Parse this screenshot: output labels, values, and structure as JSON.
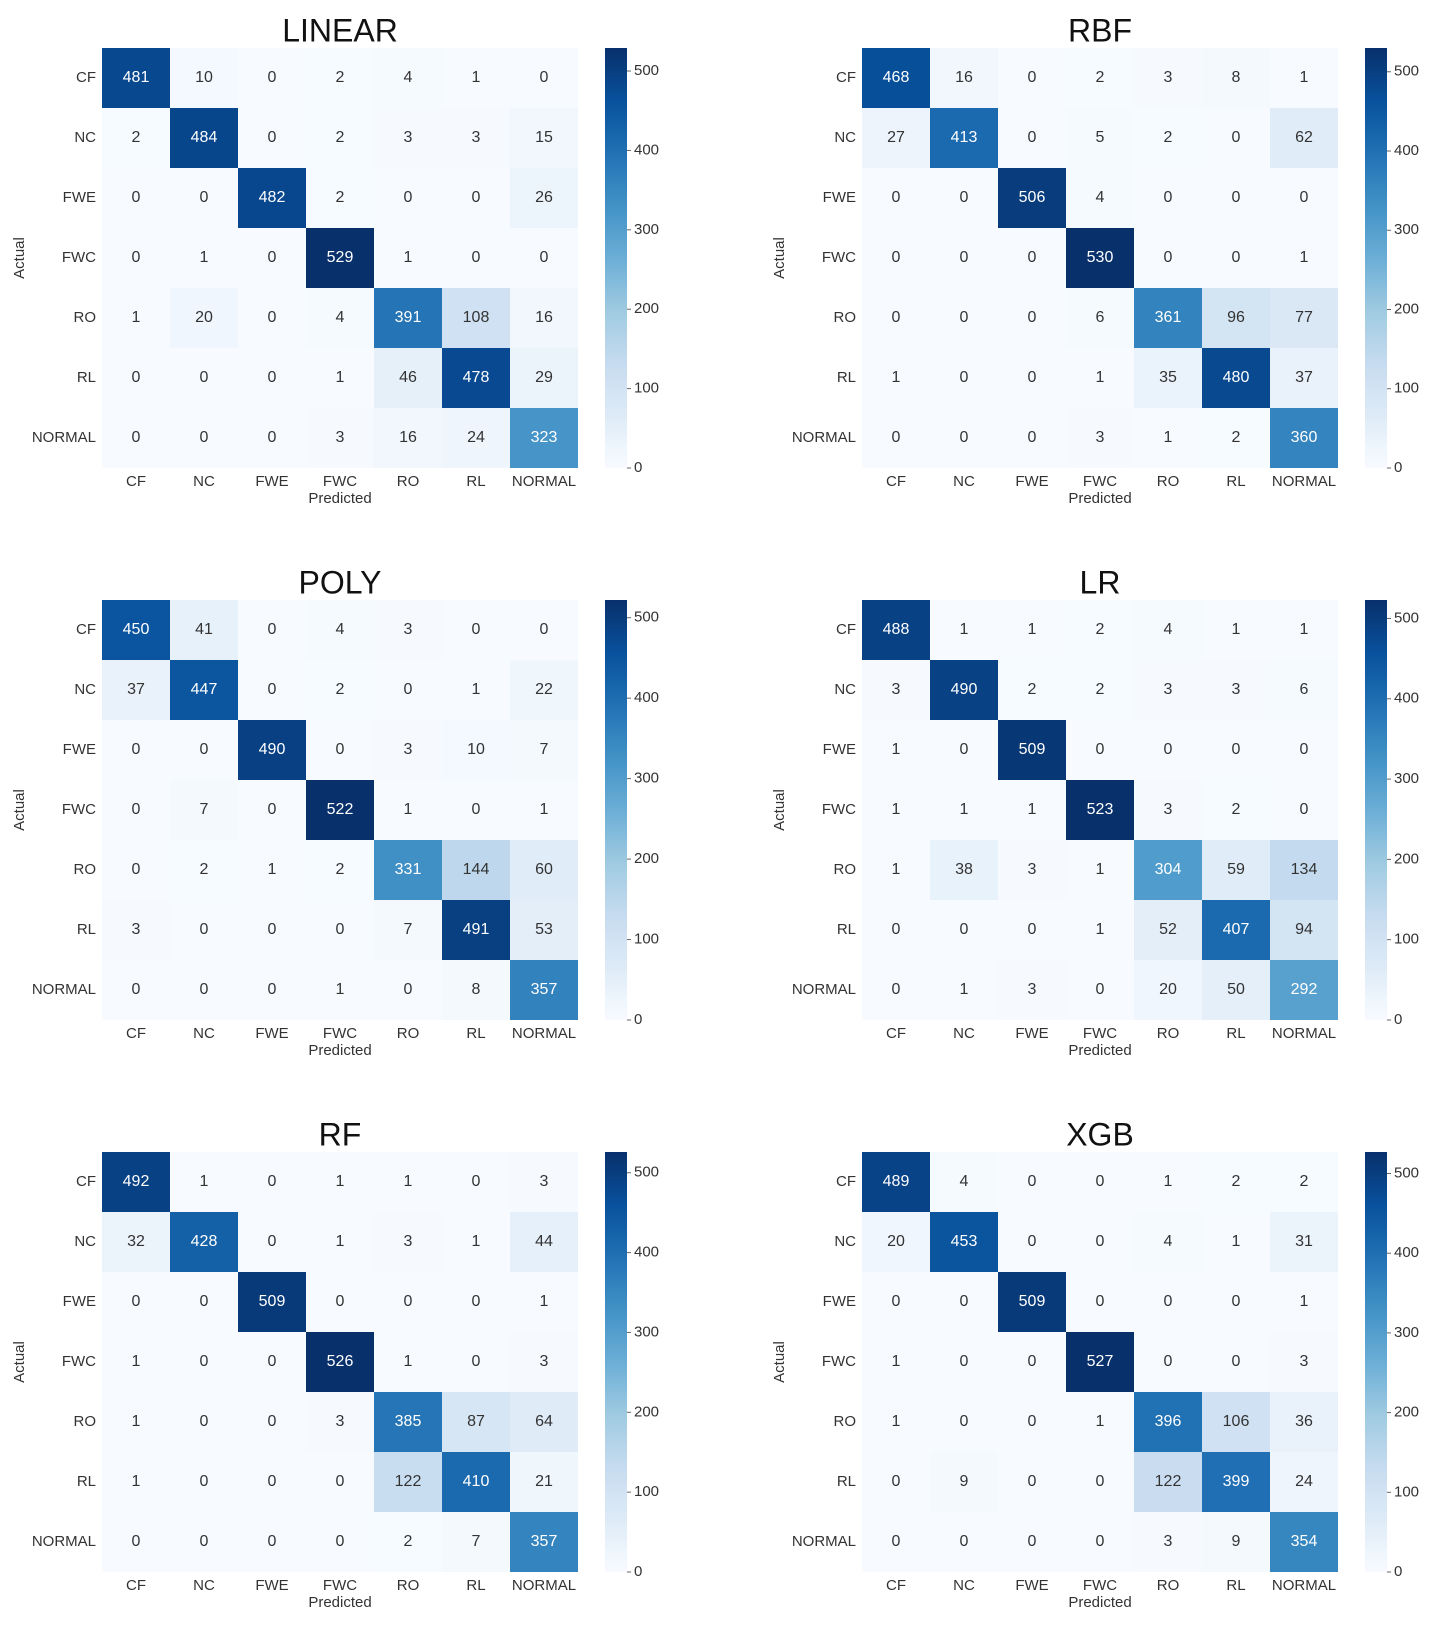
{
  "chart_data": [
    {
      "type": "heatmap",
      "title": "LINEAR",
      "xlabel": "Predicted",
      "ylabel": "Actual",
      "x_categories": [
        "CF",
        "NC",
        "FWE",
        "FWC",
        "RO",
        "RL",
        "NORMAL"
      ],
      "y_categories": [
        "CF",
        "NC",
        "FWE",
        "FWC",
        "RO",
        "RL",
        "NORMAL"
      ],
      "values": [
        [
          481,
          10,
          0,
          2,
          4,
          1,
          0
        ],
        [
          2,
          484,
          0,
          2,
          3,
          3,
          15
        ],
        [
          0,
          0,
          482,
          2,
          0,
          0,
          26
        ],
        [
          0,
          1,
          0,
          529,
          1,
          0,
          0
        ],
        [
          1,
          20,
          0,
          4,
          391,
          108,
          16
        ],
        [
          0,
          0,
          0,
          1,
          46,
          478,
          29
        ],
        [
          0,
          0,
          0,
          3,
          16,
          24,
          323
        ]
      ],
      "zlim": [
        0,
        529
      ],
      "zticks": [
        0,
        100,
        200,
        300,
        400,
        500
      ]
    },
    {
      "type": "heatmap",
      "title": "RBF",
      "xlabel": "Predicted",
      "ylabel": "Actual",
      "x_categories": [
        "CF",
        "NC",
        "FWE",
        "FWC",
        "RO",
        "RL",
        "NORMAL"
      ],
      "y_categories": [
        "CF",
        "NC",
        "FWE",
        "FWC",
        "RO",
        "RL",
        "NORMAL"
      ],
      "values": [
        [
          468,
          16,
          0,
          2,
          3,
          8,
          1
        ],
        [
          27,
          413,
          0,
          5,
          2,
          0,
          62
        ],
        [
          0,
          0,
          506,
          4,
          0,
          0,
          0
        ],
        [
          0,
          0,
          0,
          530,
          0,
          0,
          1
        ],
        [
          0,
          0,
          0,
          6,
          361,
          96,
          77
        ],
        [
          1,
          0,
          0,
          1,
          35,
          480,
          37
        ],
        [
          0,
          0,
          0,
          3,
          1,
          2,
          360
        ]
      ],
      "zlim": [
        0,
        530
      ],
      "zticks": [
        0,
        100,
        200,
        300,
        400,
        500
      ]
    },
    {
      "type": "heatmap",
      "title": "POLY",
      "xlabel": "Predicted",
      "ylabel": "Actual",
      "x_categories": [
        "CF",
        "NC",
        "FWE",
        "FWC",
        "RO",
        "RL",
        "NORMAL"
      ],
      "y_categories": [
        "CF",
        "NC",
        "FWE",
        "FWC",
        "RO",
        "RL",
        "NORMAL"
      ],
      "values": [
        [
          450,
          41,
          0,
          4,
          3,
          0,
          0
        ],
        [
          37,
          447,
          0,
          2,
          0,
          1,
          22
        ],
        [
          0,
          0,
          490,
          0,
          3,
          10,
          7
        ],
        [
          0,
          7,
          0,
          522,
          1,
          0,
          1
        ],
        [
          0,
          2,
          1,
          2,
          331,
          144,
          60
        ],
        [
          3,
          0,
          0,
          0,
          7,
          491,
          53
        ],
        [
          0,
          0,
          0,
          1,
          0,
          8,
          357
        ]
      ],
      "zlim": [
        0,
        522
      ],
      "zticks": [
        0,
        100,
        200,
        300,
        400,
        500
      ]
    },
    {
      "type": "heatmap",
      "title": "LR",
      "xlabel": "Predicted",
      "ylabel": "Actual",
      "x_categories": [
        "CF",
        "NC",
        "FWE",
        "FWC",
        "RO",
        "RL",
        "NORMAL"
      ],
      "y_categories": [
        "CF",
        "NC",
        "FWE",
        "FWC",
        "RO",
        "RL",
        "NORMAL"
      ],
      "values": [
        [
          488,
          1,
          1,
          2,
          4,
          1,
          1
        ],
        [
          3,
          490,
          2,
          2,
          3,
          3,
          6
        ],
        [
          1,
          0,
          509,
          0,
          0,
          0,
          0
        ],
        [
          1,
          1,
          1,
          523,
          3,
          2,
          0
        ],
        [
          1,
          38,
          3,
          1,
          304,
          59,
          134
        ],
        [
          0,
          0,
          0,
          1,
          52,
          407,
          94
        ],
        [
          0,
          1,
          3,
          0,
          20,
          50,
          292
        ]
      ],
      "zlim": [
        0,
        523
      ],
      "zticks": [
        0,
        100,
        200,
        300,
        400,
        500
      ]
    },
    {
      "type": "heatmap",
      "title": "RF",
      "xlabel": "Predicted",
      "ylabel": "Actual",
      "x_categories": [
        "CF",
        "NC",
        "FWE",
        "FWC",
        "RO",
        "RL",
        "NORMAL"
      ],
      "y_categories": [
        "CF",
        "NC",
        "FWE",
        "FWC",
        "RO",
        "RL",
        "NORMAL"
      ],
      "values": [
        [
          492,
          1,
          0,
          1,
          1,
          0,
          3
        ],
        [
          32,
          428,
          0,
          1,
          3,
          1,
          44
        ],
        [
          0,
          0,
          509,
          0,
          0,
          0,
          1
        ],
        [
          1,
          0,
          0,
          526,
          1,
          0,
          3
        ],
        [
          1,
          0,
          0,
          3,
          385,
          87,
          64
        ],
        [
          1,
          0,
          0,
          0,
          122,
          410,
          21
        ],
        [
          0,
          0,
          0,
          0,
          2,
          7,
          357
        ]
      ],
      "zlim": [
        0,
        526
      ],
      "zticks": [
        0,
        100,
        200,
        300,
        400,
        500
      ]
    },
    {
      "type": "heatmap",
      "title": "XGB",
      "xlabel": "Predicted",
      "ylabel": "Actual",
      "x_categories": [
        "CF",
        "NC",
        "FWE",
        "FWC",
        "RO",
        "RL",
        "NORMAL"
      ],
      "y_categories": [
        "CF",
        "NC",
        "FWE",
        "FWC",
        "RO",
        "RL",
        "NORMAL"
      ],
      "values": [
        [
          489,
          4,
          0,
          0,
          1,
          2,
          2
        ],
        [
          20,
          453,
          0,
          0,
          4,
          1,
          31
        ],
        [
          0,
          0,
          509,
          0,
          0,
          0,
          1
        ],
        [
          1,
          0,
          0,
          527,
          0,
          0,
          3
        ],
        [
          1,
          0,
          0,
          1,
          396,
          106,
          36
        ],
        [
          0,
          9,
          0,
          0,
          122,
          399,
          24
        ],
        [
          0,
          0,
          0,
          0,
          3,
          9,
          354
        ]
      ],
      "zlim": [
        0,
        527
      ],
      "zticks": [
        0,
        100,
        200,
        300,
        400,
        500
      ]
    }
  ]
}
